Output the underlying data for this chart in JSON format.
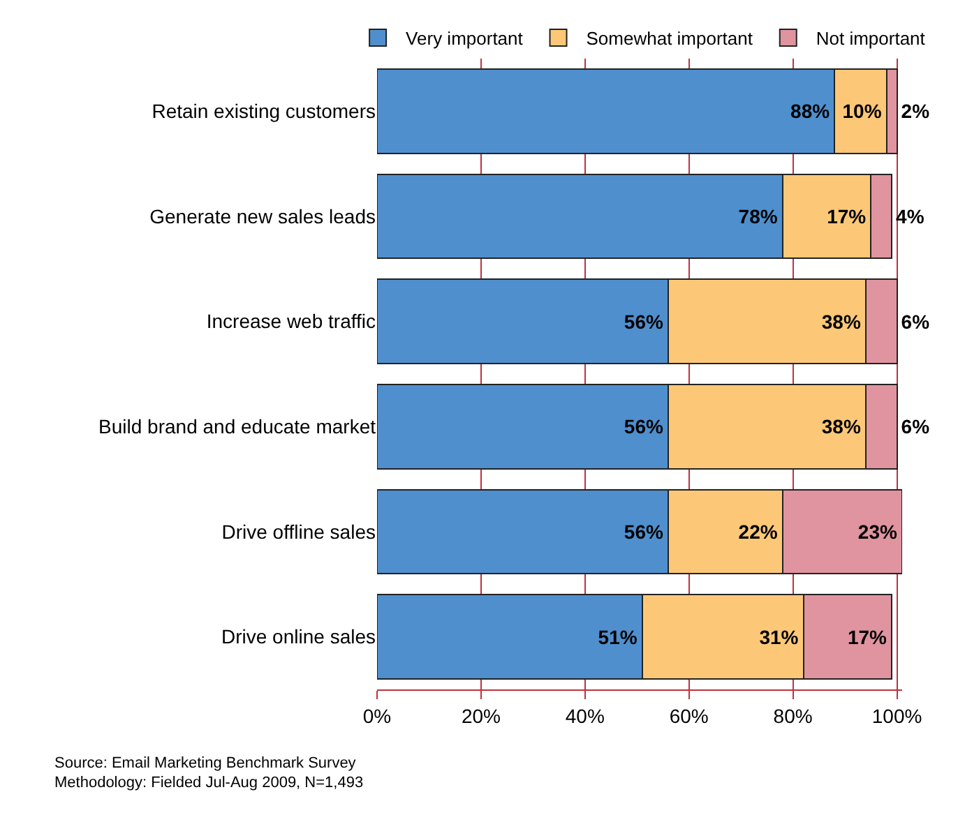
{
  "chart_data": {
    "type": "bar",
    "orientation": "horizontal",
    "stacked": true,
    "categories": [
      "Retain existing customers",
      "Generate new sales leads",
      "Increase web traffic",
      "Build brand and educate market",
      "Drive offline sales",
      "Drive online sales"
    ],
    "series": [
      {
        "name": "Very important",
        "color": "#4f8fce",
        "values": [
          88,
          78,
          56,
          56,
          56,
          51
        ],
        "value_labels": [
          "88%",
          "78%",
          "56%",
          "56%",
          "56%",
          "51%"
        ]
      },
      {
        "name": "Somewhat important",
        "color": "#fcc878",
        "values": [
          10,
          17,
          38,
          38,
          22,
          31
        ],
        "value_labels": [
          "10%",
          "17%",
          "38%",
          "38%",
          "22%",
          "31%"
        ]
      },
      {
        "name": "Not important",
        "color": "#e0949f",
        "values": [
          2,
          4,
          6,
          6,
          23,
          17
        ],
        "value_labels": [
          "2%",
          "4%",
          "6%",
          "6%",
          "23%",
          "17%"
        ]
      }
    ],
    "xlim": [
      0,
      101
    ],
    "xticks": [
      {
        "value": 0,
        "label": "0%"
      },
      {
        "value": 20,
        "label": "20%"
      },
      {
        "value": 40,
        "label": "40%"
      },
      {
        "value": 60,
        "label": "60%"
      },
      {
        "value": 80,
        "label": "80%"
      },
      {
        "value": 100,
        "label": "100%"
      }
    ],
    "grid": "x",
    "legend": "top",
    "annotations": [
      "Source: Email Marketing Benchmark Survey",
      "Methodology: Fielded Jul-Aug 2009, N=1,493"
    ]
  }
}
